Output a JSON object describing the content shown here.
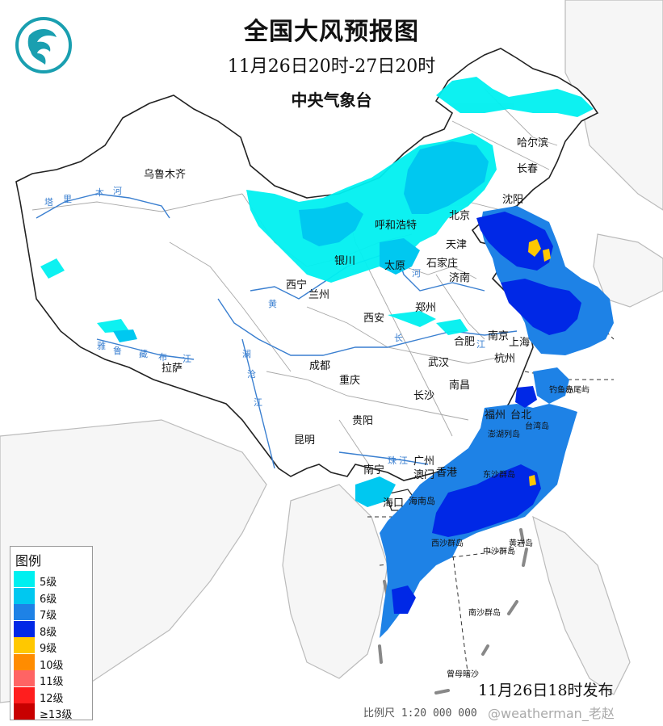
{
  "header": {
    "title": "全国大风预报图",
    "period": "11月26日20时-27日20时",
    "agency": "中央气象台"
  },
  "legend": {
    "title": "图例",
    "items": [
      {
        "label": "5级",
        "color": "#00f0f0"
      },
      {
        "label": "6级",
        "color": "#00c8f0"
      },
      {
        "label": "7级",
        "color": "#1e82e6"
      },
      {
        "label": "8级",
        "color": "#0028e6"
      },
      {
        "label": "9级",
        "color": "#ffc800"
      },
      {
        "label": "10级",
        "color": "#ff8c00"
      },
      {
        "label": "11级",
        "color": "#ff6464"
      },
      {
        "label": "12级",
        "color": "#ff1e1e"
      },
      {
        "label": "≥13级",
        "color": "#c80000"
      }
    ]
  },
  "cities": [
    "乌鲁木齐",
    "哈尔滨",
    "长春",
    "沈阳",
    "北京",
    "天津",
    "呼和浩特",
    "石家庄",
    "太原",
    "银川",
    "济南",
    "西宁",
    "兰州",
    "西安",
    "郑州",
    "合肥",
    "南京",
    "上海",
    "杭州",
    "武汉",
    "成都",
    "重庆",
    "拉萨",
    "长沙",
    "南昌",
    "福州",
    "台北",
    "贵阳",
    "昆明",
    "广州",
    "南宁",
    "澳门",
    "香港",
    "海口",
    "海南岛",
    "台湾岛",
    "东沙群岛",
    "西沙群岛",
    "中沙群岛",
    "南沙群岛",
    "黄岩岛",
    "钓鱼岛",
    "赤尾屿",
    "曾母暗沙",
    "澎湖列岛"
  ],
  "rivers": [
    "塔",
    "里",
    "木",
    "河",
    "黄",
    "河",
    "长",
    "江",
    "雅",
    "鲁",
    "藏",
    "布",
    "江",
    "澜",
    "沧",
    "江",
    "珠",
    "江"
  ],
  "footer": {
    "issued": "11月26日18时发布",
    "scale": "比例尺 1:20 000 000",
    "watermark": "@weatherman_老赵"
  },
  "colors": {
    "land_fill": "#ffffff",
    "border": "#222222",
    "province_border": "#9a9a9a",
    "river": "#3a7fd0",
    "sea": "#ffffff",
    "neighbor_land": "#f4f4f4",
    "logo": "#1a9fb0"
  }
}
